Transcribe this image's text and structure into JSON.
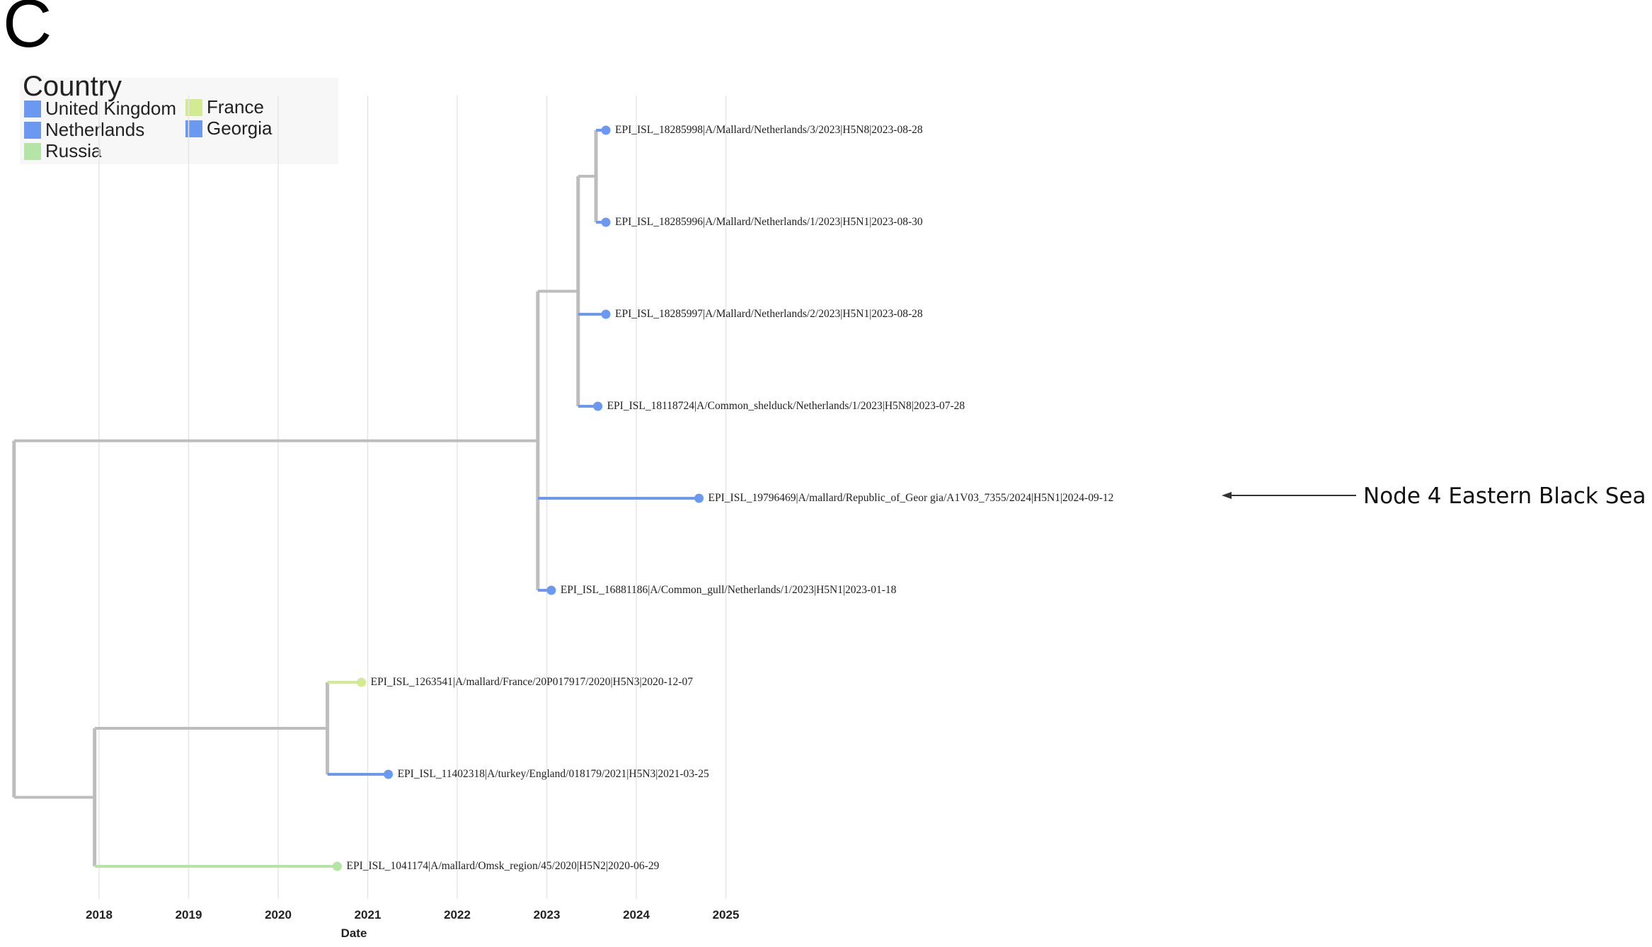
{
  "panel_letter": "C",
  "legend": {
    "title": "Country",
    "items": [
      {
        "label": "United Kingdom",
        "color": "#6b98f0"
      },
      {
        "label": "Netherlands",
        "color": "#6b98f0"
      },
      {
        "label": "Russia",
        "color": "#b5e5a6"
      },
      {
        "label": "France",
        "color": "#d2ea92"
      },
      {
        "label": "Georgia",
        "color": "#6b98f0"
      }
    ]
  },
  "chart_data": {
    "type": "phylogenetic-tree",
    "xlabel": "Date",
    "x_ticks": [
      "2018",
      "2019",
      "2020",
      "2021",
      "2022",
      "2023",
      "2024",
      "2025"
    ],
    "xlim": [
      2016.8,
      2025.3
    ],
    "root_date": 2017.05,
    "internal_nodes": [
      {
        "id": "root",
        "date": 2017.05,
        "parent": null
      },
      {
        "id": "nA",
        "date": 2022.9,
        "parent": "root"
      },
      {
        "id": "nB",
        "date": 2023.35,
        "parent": "nA"
      },
      {
        "id": "nC",
        "date": 2023.55,
        "parent": "nB"
      },
      {
        "id": "nD",
        "date": 2017.95,
        "parent": "root"
      },
      {
        "id": "nE",
        "date": 2020.55,
        "parent": "nD"
      }
    ],
    "tips": [
      {
        "label": "EPI_ISL_18285998|A/Mallard/Netherlands/3/2023|H5N8|2023-08-28",
        "date": 2023.66,
        "parent": "nC",
        "country": "Netherlands"
      },
      {
        "label": "EPI_ISL_18285996|A/Mallard/Netherlands/1/2023|H5N1|2023-08-30",
        "date": 2023.66,
        "parent": "nC",
        "country": "Netherlands"
      },
      {
        "label": "EPI_ISL_18285997|A/Mallard/Netherlands/2/2023|H5N1|2023-08-28",
        "date": 2023.66,
        "parent": "nB",
        "country": "Netherlands"
      },
      {
        "label": "EPI_ISL_18118724|A/Common_shelduck/Netherlands/1/2023|H5N8|2023-07-28",
        "date": 2023.57,
        "parent": "nB",
        "country": "Netherlands"
      },
      {
        "label": "EPI_ISL_19796469|A/mallard/Republic_of_Geor gia/A1V03_7355/2024|H5N1|2024-09-12",
        "date": 2024.7,
        "parent": "nA",
        "country": "Georgia"
      },
      {
        "label": "EPI_ISL_16881186|A/Common_gull/Netherlands/1/2023|H5N1|2023-01-18",
        "date": 2023.05,
        "parent": "nA",
        "country": "Netherlands"
      },
      {
        "label": "EPI_ISL_1263541|A/mallard/France/20P017917/2020|H5N3|2020-12-07",
        "date": 2020.93,
        "parent": "nE",
        "country": "France"
      },
      {
        "label": "EPI_ISL_11402318|A/turkey/England/018179/2021|H5N3|2021-03-25",
        "date": 2021.23,
        "parent": "nE",
        "country": "United Kingdom"
      },
      {
        "label": "EPI_ISL_1041174|A/mallard/Omsk_region/45/2020|H5N2|2020-06-29",
        "date": 2020.66,
        "parent": "nD",
        "country": "Russia"
      }
    ],
    "annotation": {
      "text": "Node 4 Eastern Black Sea",
      "points_to_tip": 4
    }
  }
}
